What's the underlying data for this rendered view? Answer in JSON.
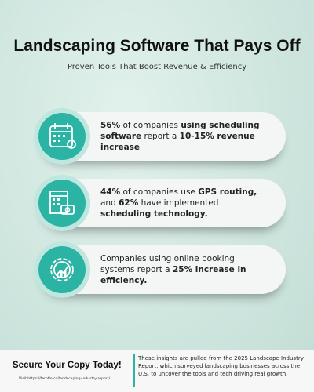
{
  "header": {
    "title": "Landscaping Software That Pays Off",
    "subtitle": "Proven Tools That Boost Revenue & Efficiency"
  },
  "cards": [
    {
      "parts": [
        {
          "text": "56%",
          "bold": true
        },
        {
          "text": " of companies ",
          "bold": false
        },
        {
          "text": "using scheduling software",
          "bold": true
        },
        {
          "text": " report a ",
          "bold": false
        },
        {
          "text": "10-15% revenue increase",
          "bold": true
        }
      ]
    },
    {
      "parts": [
        {
          "text": "44%",
          "bold": true
        },
        {
          "text": " of companies use ",
          "bold": false
        },
        {
          "text": "GPS routing,",
          "bold": true
        },
        {
          "text": " and ",
          "bold": false
        },
        {
          "text": "62%",
          "bold": true
        },
        {
          "text": " have implemented ",
          "bold": false
        },
        {
          "text": "scheduling technology.",
          "bold": true
        }
      ]
    },
    {
      "parts": [
        {
          "text": "Companies using online booking systems report a ",
          "bold": false
        },
        {
          "text": "25% increase in efficiency.",
          "bold": true
        }
      ]
    }
  ],
  "footer": {
    "cta": "Secure Your Copy Today!",
    "url": "Visit https://fernflo.co/landscaping-industry-report/",
    "note": "These insights are pulled from the 2025 Landscape Industry Report, which surveyed landscaping businesses across the U.S. to uncover the tools and tech driving real growth."
  }
}
